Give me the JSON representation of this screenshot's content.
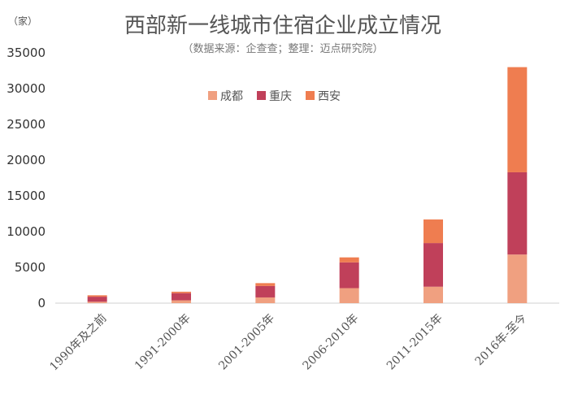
{
  "chart_data": {
    "type": "bar",
    "stacked": true,
    "title": "西部新一线城市住宿企业成立情况",
    "subtitle": "（数据来源：企查查；整理：迈点研究院）",
    "unit": "（家）",
    "categories": [
      "1990年及之前",
      "1991-2000年",
      "2001-2005年",
      "2006-2010年",
      "2011-2015年",
      "2016年-至今"
    ],
    "series": [
      {
        "name": "成都",
        "color": "#f0a080",
        "values": [
          200,
          400,
          800,
          2100,
          2300,
          6800
        ]
      },
      {
        "name": "重庆",
        "color": "#c0405a",
        "values": [
          700,
          1000,
          1600,
          3600,
          6100,
          11500
        ]
      },
      {
        "name": "西安",
        "color": "#ef7d50",
        "values": [
          200,
          200,
          400,
          700,
          3300,
          14700
        ]
      }
    ],
    "yticks": [
      0,
      5000,
      10000,
      15000,
      20000,
      25000,
      30000,
      35000
    ],
    "ylim": [
      0,
      35000
    ],
    "legend_position": "top-center",
    "grid": false
  }
}
